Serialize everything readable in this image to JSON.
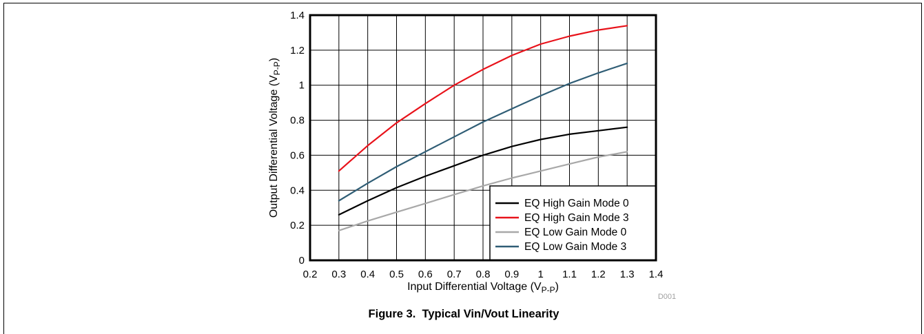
{
  "caption": "Figure 3.  Typical Vin/Vout Linearity",
  "figure_code": "D001",
  "chart_data": {
    "type": "line",
    "title": "",
    "xlabel": "Input Differential Voltage (V",
    "xlabel_sub": "P-P",
    "xlabel_close": ")",
    "ylabel": "Output Differential Voltage (V",
    "ylabel_sub": "P-P",
    "ylabel_close": ")",
    "xlim": [
      0.2,
      1.4
    ],
    "ylim": [
      0,
      1.4
    ],
    "xticks": [
      0.2,
      0.3,
      0.4,
      0.5,
      0.6,
      0.7,
      0.8,
      0.9,
      1,
      1.1,
      1.2,
      1.3,
      1.4
    ],
    "yticks": [
      0,
      0.2,
      0.4,
      0.6,
      0.8,
      1,
      1.2,
      1.4
    ],
    "xtick_labels": [
      "0.2",
      "0.3",
      "0.4",
      "0.5",
      "0.6",
      "0.7",
      "0.8",
      "0.9",
      "1",
      "1.1",
      "1.2",
      "1.3",
      "1.4"
    ],
    "ytick_labels": [
      "0",
      "0.2",
      "0.4",
      "0.6",
      "0.8",
      "1",
      "1.2",
      "1.4"
    ],
    "grid": true,
    "legend_position": "bottom-right",
    "x": [
      0.3,
      0.4,
      0.5,
      0.6,
      0.7,
      0.8,
      0.9,
      1.0,
      1.1,
      1.2,
      1.3
    ],
    "series": [
      {
        "name": "EQ High Gain Mode 0",
        "color": "#000000",
        "values": [
          0.26,
          0.34,
          0.415,
          0.48,
          0.54,
          0.6,
          0.65,
          0.69,
          0.72,
          0.74,
          0.76
        ]
      },
      {
        "name": "EQ High Gain Mode 3",
        "color": "#e8121a",
        "values": [
          0.51,
          0.655,
          0.785,
          0.895,
          1.0,
          1.09,
          1.17,
          1.235,
          1.28,
          1.315,
          1.34
        ]
      },
      {
        "name": "EQ Low Gain Mode 0",
        "color": "#a8a8a8",
        "values": [
          0.17,
          0.225,
          0.275,
          0.325,
          0.375,
          0.425,
          0.47,
          0.51,
          0.55,
          0.59,
          0.62
        ]
      },
      {
        "name": "EQ Low Gain Mode 3",
        "color": "#2f5d75",
        "values": [
          0.34,
          0.44,
          0.535,
          0.62,
          0.705,
          0.79,
          0.865,
          0.94,
          1.01,
          1.07,
          1.125
        ]
      }
    ]
  }
}
